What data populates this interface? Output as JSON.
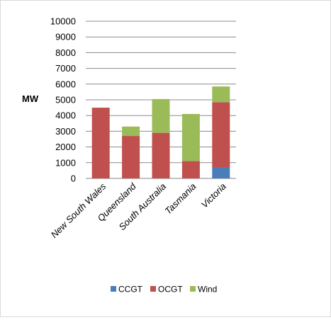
{
  "chart_data": {
    "type": "bar",
    "stacked": true,
    "categories": [
      "New South Wales",
      "Queensland",
      "South Australia",
      "Tasmania",
      "Victoria"
    ],
    "series": [
      {
        "name": "CCGT",
        "color": "#4a7ebb",
        "values": [
          0,
          0,
          0,
          0,
          700
        ]
      },
      {
        "name": "OCGT",
        "color": "#c0504d",
        "values": [
          4500,
          2700,
          2900,
          1100,
          4150
        ]
      },
      {
        "name": "Wind",
        "color": "#9bbb59",
        "values": [
          0,
          600,
          2150,
          3000,
          1000
        ]
      }
    ],
    "ylabel": "MW",
    "ylim": [
      0,
      10000
    ],
    "yticks": [
      0,
      1000,
      2000,
      3000,
      4000,
      5000,
      6000,
      7000,
      8000,
      9000,
      10000
    ],
    "grid": true,
    "legend_position": "bottom"
  }
}
